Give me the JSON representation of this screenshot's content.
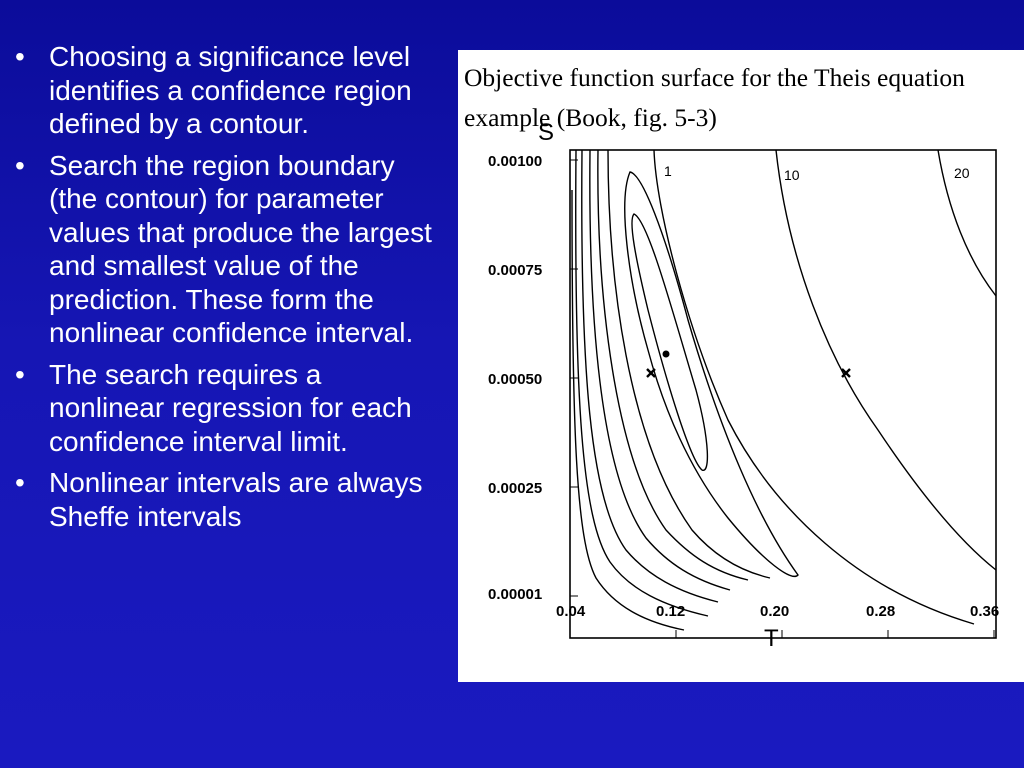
{
  "bullets": [
    "Choosing a significance level identifies a confidence region defined by a contour.",
    "Search the region boundary (the contour) for parameter values that produce the largest and smallest value of the prediction. These form the nonlinear confidence interval.",
    "The search requires a nonlinear regression for each confidence interval limit.",
    "Nonlinear intervals are always Sheffe intervals"
  ],
  "bullet_glyph": "•",
  "figure": {
    "caption": "Objective function surface for the Theis equation example (Book, fig. 5-3)",
    "y_axis_label": "S",
    "x_axis_label": "T",
    "y_ticks": [
      "0.00100",
      "0.00075",
      "0.00050",
      "0.00025",
      "0.00001"
    ],
    "x_ticks": [
      "0.04",
      "0.12",
      "0.20",
      "0.28",
      "0.36"
    ],
    "contour_labels": [
      "1",
      "10",
      "20"
    ],
    "markers": [
      {
        "type": "x",
        "T": 0.097,
        "S": 0.00049
      },
      {
        "type": "dot",
        "T": 0.108,
        "S": 0.00056
      },
      {
        "type": "x",
        "T": 0.25,
        "S": 0.00049
      }
    ]
  },
  "colors": {
    "background": "#1414b0",
    "text": "#ffffff",
    "panel": "#ffffff"
  }
}
